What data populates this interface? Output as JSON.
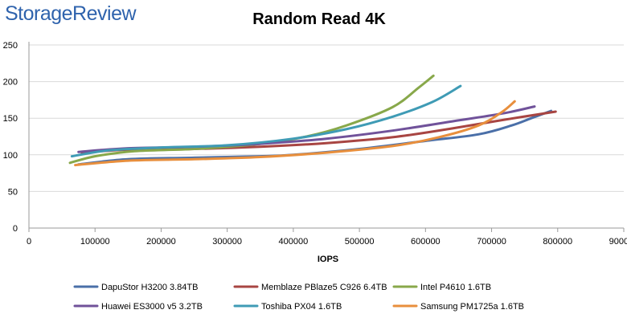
{
  "branding": {
    "logo_text": "StorageReview"
  },
  "chart_data": {
    "type": "line",
    "title": "Random Read 4K",
    "xlabel": "IOPS",
    "ylabel": "",
    "xlim": [
      0,
      900000
    ],
    "ylim": [
      0,
      250
    ],
    "x_ticks": [
      0,
      100000,
      200000,
      300000,
      400000,
      500000,
      600000,
      700000,
      800000,
      900000
    ],
    "x_tick_labels": [
      "0",
      "100000",
      "200000",
      "300000",
      "400000",
      "500000",
      "600000",
      "700000",
      "800000",
      "900000"
    ],
    "y_ticks": [
      0,
      50,
      100,
      150,
      200,
      250
    ],
    "y_tick_labels": [
      "0",
      "50",
      "100",
      "150",
      "200",
      "250"
    ],
    "grid": "horizontal",
    "legend_position": "bottom",
    "series": [
      {
        "name": "DapuStor H3200 3.84TB",
        "color": "#4a6fa8",
        "points": [
          [
            75000,
            87
          ],
          [
            150000,
            94
          ],
          [
            250000,
            96
          ],
          [
            350000,
            98
          ],
          [
            400000,
            100
          ],
          [
            500000,
            108
          ],
          [
            600000,
            119
          ],
          [
            680000,
            128
          ],
          [
            730000,
            140
          ],
          [
            760000,
            150
          ],
          [
            790000,
            160
          ]
        ]
      },
      {
        "name": "Memblaze PBlaze5 C926 6.4TB",
        "color": "#a84542",
        "points": [
          [
            80000,
            103
          ],
          [
            150000,
            107
          ],
          [
            250000,
            108
          ],
          [
            350000,
            111
          ],
          [
            450000,
            116
          ],
          [
            550000,
            124
          ],
          [
            640000,
            136
          ],
          [
            720000,
            148
          ],
          [
            797000,
            159
          ]
        ]
      },
      {
        "name": "Intel P4610 1.6TB",
        "color": "#88a84a",
        "points": [
          [
            62000,
            89
          ],
          [
            100000,
            98
          ],
          [
            160000,
            105
          ],
          [
            250000,
            108
          ],
          [
            350000,
            115
          ],
          [
            420000,
            125
          ],
          [
            480000,
            140
          ],
          [
            550000,
            165
          ],
          [
            590000,
            192
          ],
          [
            612000,
            208
          ]
        ]
      },
      {
        "name": "Huawei ES3000 v5 3.2TB",
        "color": "#70529a",
        "points": [
          [
            75000,
            104
          ],
          [
            150000,
            109
          ],
          [
            250000,
            111
          ],
          [
            350000,
            115
          ],
          [
            450000,
            122
          ],
          [
            550000,
            133
          ],
          [
            650000,
            147
          ],
          [
            720000,
            157
          ],
          [
            765000,
            166
          ]
        ]
      },
      {
        "name": "Toshiba PX04 1.6TB",
        "color": "#3f9bb5",
        "points": [
          [
            65000,
            98
          ],
          [
            120000,
            106
          ],
          [
            200000,
            110
          ],
          [
            300000,
            113
          ],
          [
            400000,
            122
          ],
          [
            480000,
            135
          ],
          [
            550000,
            152
          ],
          [
            610000,
            172
          ],
          [
            653000,
            194
          ]
        ]
      },
      {
        "name": "Samsung PM1725a 1.6TB",
        "color": "#e88f3d",
        "points": [
          [
            70000,
            86
          ],
          [
            150000,
            92
          ],
          [
            250000,
            94
          ],
          [
            350000,
            97
          ],
          [
            450000,
            103
          ],
          [
            550000,
            112
          ],
          [
            620000,
            124
          ],
          [
            680000,
            140
          ],
          [
            715000,
            158
          ],
          [
            735000,
            173
          ]
        ]
      }
    ]
  }
}
